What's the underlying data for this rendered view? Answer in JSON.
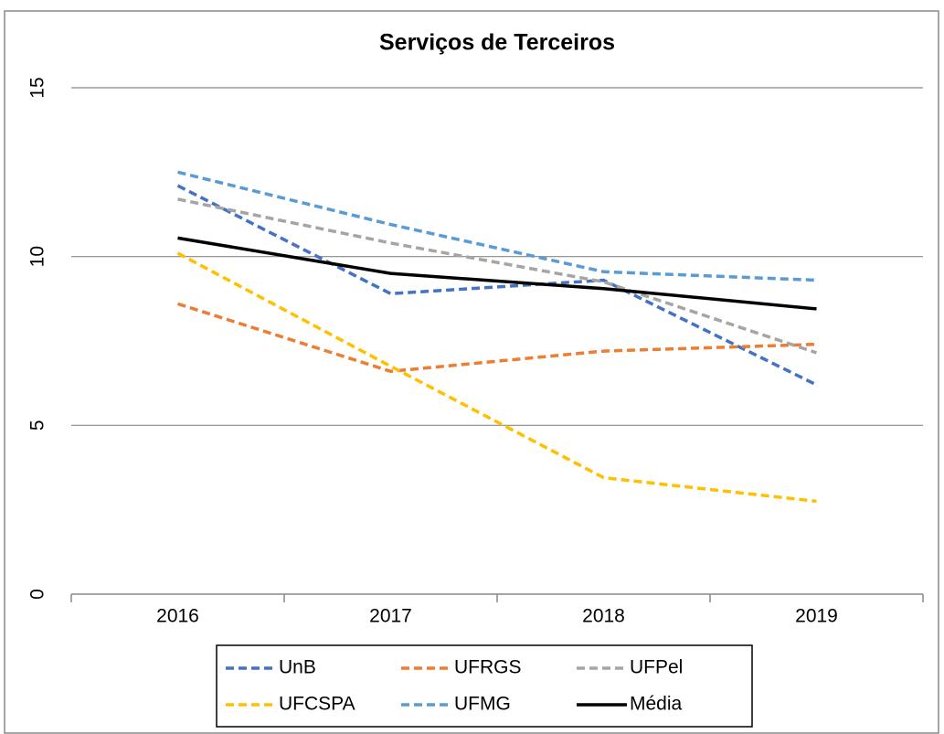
{
  "chart_data": {
    "type": "line",
    "title": "Serviços de Terceiros",
    "categories": [
      "2016",
      "2017",
      "2018",
      "2019"
    ],
    "series": [
      {
        "name": "UnB",
        "color": "#4472c4",
        "dash": true,
        "values": [
          12.1,
          8.9,
          9.3,
          6.2
        ]
      },
      {
        "name": "UFRGS",
        "color": "#ed7d31",
        "dash": true,
        "values": [
          8.6,
          6.6,
          7.2,
          7.4
        ]
      },
      {
        "name": "UFPel",
        "color": "#a5a5a5",
        "dash": true,
        "values": [
          11.7,
          10.4,
          9.25,
          7.15
        ]
      },
      {
        "name": "UFCSPA",
        "color": "#ffc000",
        "dash": true,
        "values": [
          10.1,
          6.75,
          3.45,
          2.75
        ]
      },
      {
        "name": "UFMG",
        "color": "#5b9bd5",
        "dash": true,
        "values": [
          12.5,
          10.95,
          9.55,
          9.3
        ]
      },
      {
        "name": "Média",
        "color": "#000000",
        "dash": false,
        "values": [
          10.55,
          9.5,
          9.05,
          8.45
        ]
      }
    ],
    "ylim": [
      0,
      15
    ],
    "yticks": [
      0,
      5,
      10,
      15
    ],
    "grid": true,
    "legend": "bottom"
  }
}
